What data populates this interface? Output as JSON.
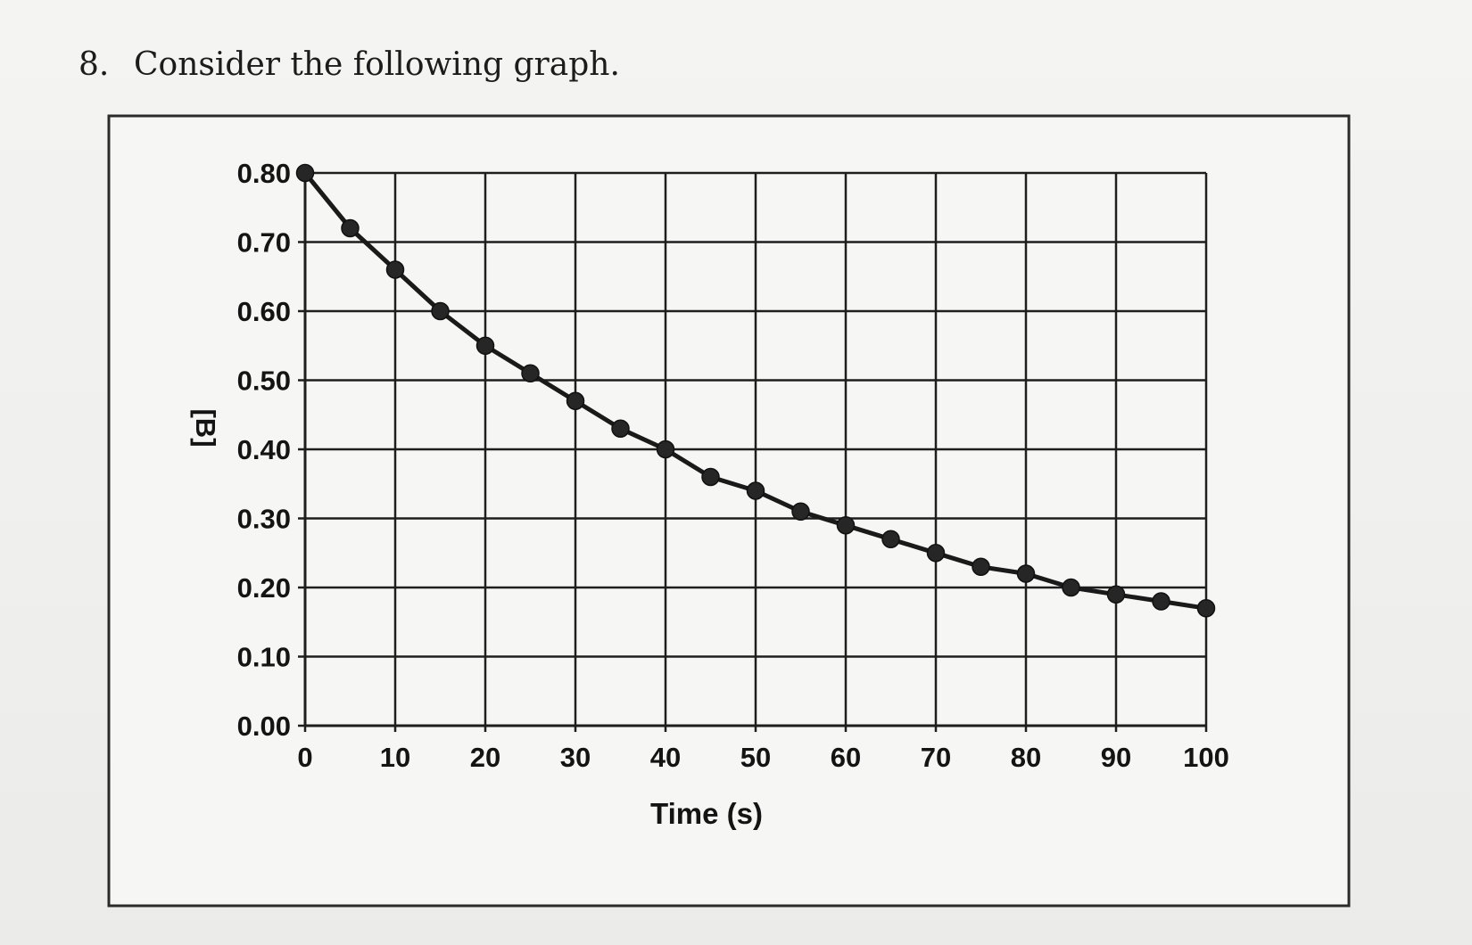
{
  "question": {
    "number": "8.",
    "text": "Consider the following graph."
  },
  "colors": {
    "line": "#1a1a1a",
    "marker": "#262626",
    "grid": "#1e1e1e",
    "text": "#141414"
  },
  "chart_data": {
    "type": "line",
    "title": "",
    "xlabel": "Time (s)",
    "ylabel": "[B]",
    "xlim": [
      0,
      100
    ],
    "ylim": [
      0.0,
      0.8
    ],
    "x_ticks": [
      "0",
      "10",
      "20",
      "30",
      "40",
      "50",
      "60",
      "70",
      "80",
      "90",
      "100"
    ],
    "y_ticks": [
      "0.00",
      "0.10",
      "0.20",
      "0.30",
      "0.40",
      "0.50",
      "0.60",
      "0.70",
      "0.80"
    ],
    "grid": true,
    "legend": "none",
    "series": [
      {
        "x": [
          0,
          5,
          10,
          15,
          20,
          25,
          30,
          35,
          40,
          45,
          50,
          55,
          60,
          65,
          70,
          75,
          80,
          85,
          90,
          95,
          100
        ],
        "y": [
          0.8,
          0.72,
          0.66,
          0.6,
          0.55,
          0.51,
          0.47,
          0.43,
          0.4,
          0.36,
          0.34,
          0.31,
          0.29,
          0.27,
          0.25,
          0.23,
          0.22,
          0.2,
          0.19,
          0.18,
          0.17
        ]
      }
    ]
  }
}
